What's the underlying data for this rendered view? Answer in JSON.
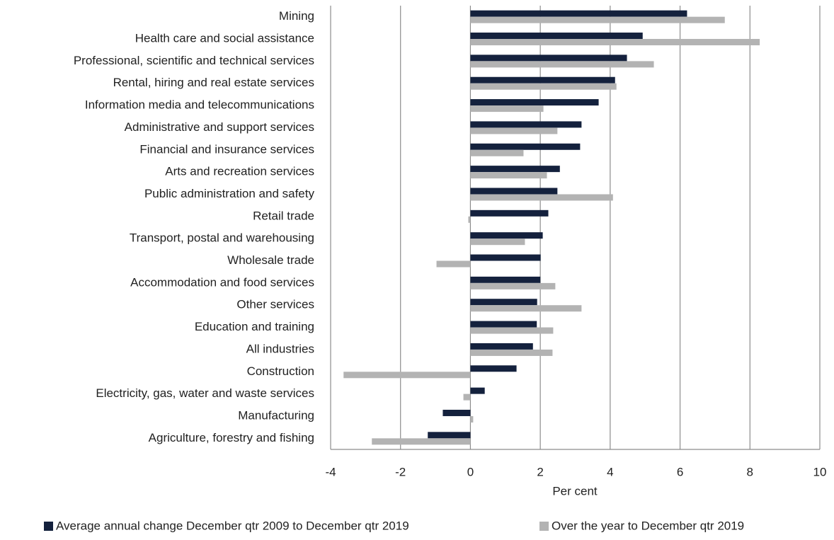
{
  "chart_data": {
    "type": "hbar",
    "x_label": "Per cent",
    "categories": [
      "Mining",
      "Health care and social assistance",
      "Professional, scientific and technical services",
      "Rental, hiring and real estate services",
      "Information media and telecommunications",
      "Administrative and support services",
      "Financial and insurance services",
      "Arts and recreation services",
      "Public administration and safety",
      "Retail trade",
      "Transport, postal and warehousing",
      "Wholesale trade",
      "Accommodation and food services",
      "Other services",
      "Education and training",
      "All industries",
      "Construction",
      "Electricity, gas, water and waste services",
      "Manufacturing",
      "Agriculture, forestry and fishing"
    ],
    "series": [
      {
        "name": "Average annual change December qtr 2009 to December qtr 2019",
        "color": "#14213d",
        "values": [
          6.2,
          4.93,
          4.48,
          4.14,
          3.67,
          3.18,
          3.14,
          2.56,
          2.49,
          2.23,
          2.07,
          2.01,
          2.0,
          1.91,
          1.9,
          1.79,
          1.32,
          0.41,
          -0.79,
          -1.22
        ]
      },
      {
        "name": "Over the year to December qtr 2019",
        "color": "#b3b3b3",
        "values": [
          7.28,
          8.28,
          5.25,
          4.18,
          2.09,
          2.49,
          1.52,
          2.19,
          4.08,
          -0.06,
          1.56,
          -0.97,
          2.43,
          3.18,
          2.37,
          2.35,
          -3.63,
          -0.2,
          0.08,
          -2.82
        ]
      }
    ],
    "xlim": [
      -4,
      10
    ],
    "xticks": [
      -4,
      -2,
      0,
      2,
      4,
      6,
      8,
      10
    ],
    "grid": true,
    "legend": "bottom"
  }
}
